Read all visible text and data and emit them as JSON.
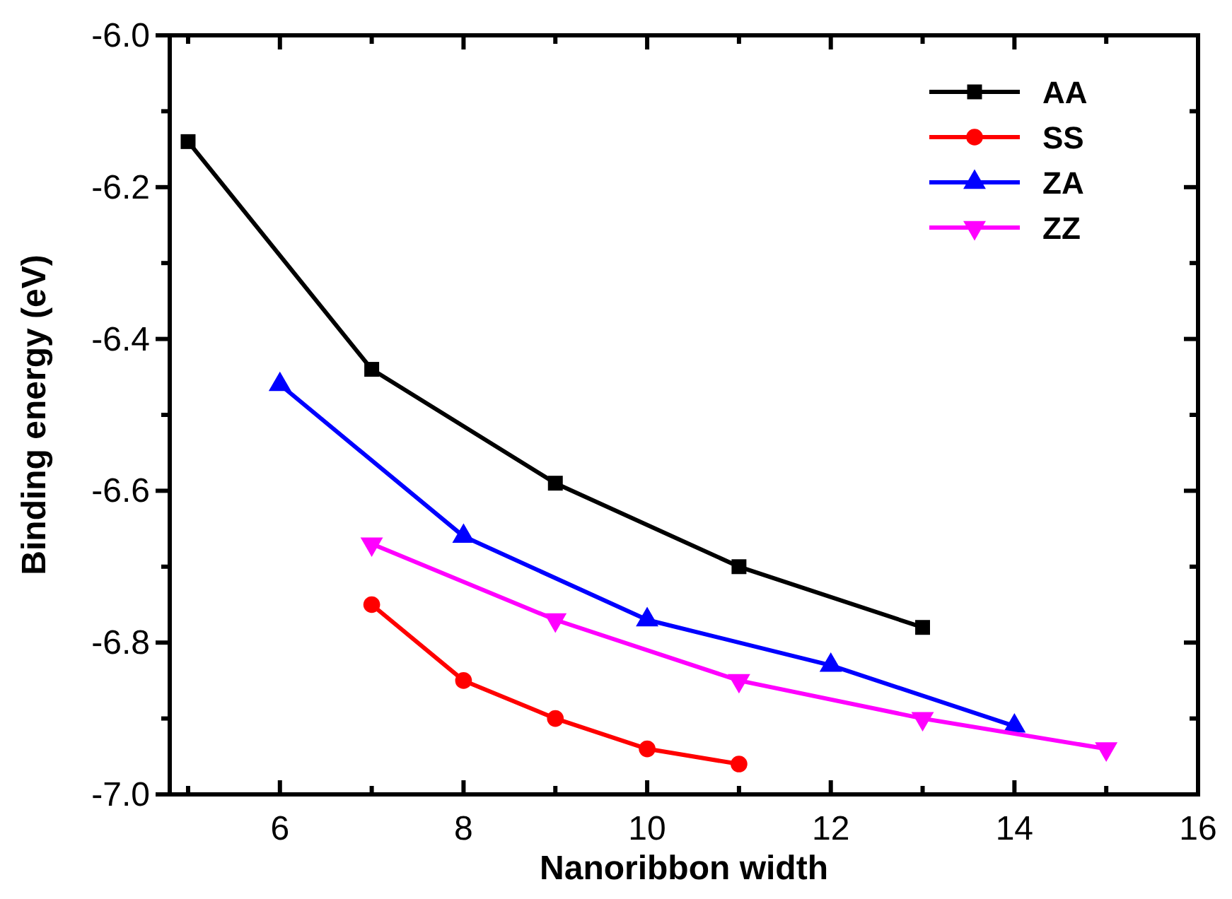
{
  "chart_data": {
    "type": "line",
    "xlabel": "Nanoribbon width",
    "ylabel": "Binding energy (eV)",
    "xlim": [
      4.8,
      16
    ],
    "ylim": [
      -7.0,
      -6.0
    ],
    "xticks": [
      {
        "value": 5,
        "label": null
      },
      6,
      {
        "value": 7,
        "label": null
      },
      8,
      {
        "value": 9,
        "label": null
      },
      10,
      {
        "value": 11,
        "label": null
      },
      12,
      {
        "value": 13,
        "label": null
      },
      14,
      {
        "value": 15,
        "label": null
      },
      16
    ],
    "yticks": [
      {
        "value": -7.0,
        "label": "-7.0"
      },
      {
        "value": -6.9,
        "label": null
      },
      {
        "value": -6.8,
        "label": "-6.8"
      },
      {
        "value": -6.7,
        "label": null
      },
      {
        "value": -6.6,
        "label": "-6.6"
      },
      {
        "value": -6.5,
        "label": null
      },
      {
        "value": -6.4,
        "label": "-6.4"
      },
      {
        "value": -6.3,
        "label": null
      },
      {
        "value": -6.2,
        "label": "-6.2"
      },
      {
        "value": -6.1,
        "label": null
      },
      {
        "value": -6.0,
        "label": "-6.0"
      }
    ],
    "grid": false,
    "legend": "top right",
    "line_style": "solid",
    "series": [
      {
        "name": "AA",
        "color": "#000000",
        "marker": "square",
        "x": [
          5,
          7,
          9,
          11,
          13
        ],
        "values": [
          -6.14,
          -6.44,
          -6.59,
          -6.7,
          -6.78
        ]
      },
      {
        "name": "SS",
        "color": "#ff0000",
        "marker": "circle",
        "x": [
          7,
          8,
          9,
          10,
          11
        ],
        "values": [
          -6.75,
          -6.85,
          -6.9,
          -6.94,
          -6.96
        ]
      },
      {
        "name": "ZA",
        "color": "#0000ff",
        "marker": "triangle",
        "x": [
          6,
          8,
          10,
          12,
          14
        ],
        "values": [
          -6.46,
          -6.66,
          -6.77,
          -6.83,
          -6.91
        ]
      },
      {
        "name": "ZZ",
        "color": "#ff00ff",
        "marker": "triangle-down",
        "x": [
          7,
          9,
          11,
          13,
          15
        ],
        "values": [
          -6.67,
          -6.77,
          -6.85,
          -6.9,
          -6.94
        ]
      }
    ]
  }
}
